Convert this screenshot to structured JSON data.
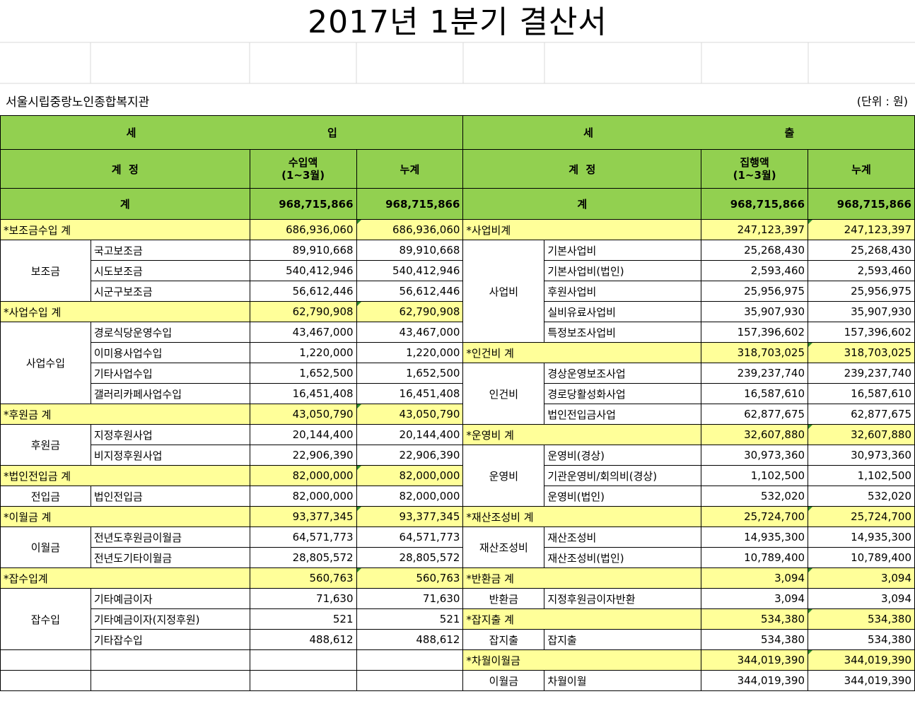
{
  "document": {
    "title": "2017년 1분기 결산서",
    "organization": "서울시립중랑노인종합복지관",
    "unit": "(단위 : 원)"
  },
  "header": {
    "income_part1": "세",
    "income_part2": "입",
    "expense_part1": "세",
    "expense_part2": "출",
    "account": "계  정",
    "income_amount_line1": "수입액",
    "income_amount_line2": "(1~3월)",
    "expense_amount_line1": "집행액",
    "expense_amount_line2": "(1~3월)",
    "cumulative": "누계",
    "total_label": "계",
    "income_total": "968,715,866",
    "income_total_cum": "968,715,866",
    "expense_total": "968,715,866",
    "expense_total_cum": "968,715,866"
  },
  "rows": [
    {
      "l": {
        "sub": "*보조금수입 계",
        "a": "686,936,060",
        "b": "686,936,060"
      },
      "r": {
        "sub": "*사업비계",
        "a": "247,123,397",
        "b": "247,123,397"
      }
    },
    {
      "l": {
        "grp": "보조금",
        "item": "국고보조금",
        "a": "89,910,668",
        "b": "89,910,668"
      },
      "r": {
        "grp": "사업비",
        "item": "기본사업비",
        "a": "25,268,430",
        "b": "25,268,430"
      }
    },
    {
      "l": {
        "item": "시도보조금",
        "a": "540,412,946",
        "b": "540,412,946"
      },
      "r": {
        "item": "기본사업비(법인)",
        "a": "2,593,460",
        "b": "2,593,460"
      }
    },
    {
      "l": {
        "item": "시군구보조금",
        "a": "56,612,446",
        "b": "56,612,446"
      },
      "r": {
        "item": "후원사업비",
        "a": "25,956,975",
        "b": "25,956,975"
      }
    },
    {
      "l": {
        "sub": "*사업수입 계",
        "a": "62,790,908",
        "b": "62,790,908"
      },
      "r": {
        "item": "실비유료사업비",
        "a": "35,907,930",
        "b": "35,907,930"
      }
    },
    {
      "l": {
        "grp": "사업수입",
        "item": "경로식당운영수입",
        "a": "43,467,000",
        "b": "43,467,000"
      },
      "r": {
        "item": "특정보조사업비",
        "a": "157,396,602",
        "b": "157,396,602"
      }
    },
    {
      "l": {
        "item": "이미용사업수입",
        "a": "1,220,000",
        "b": "1,220,000"
      },
      "r": {
        "sub": "*인건비 계",
        "a": "318,703,025",
        "b": "318,703,025"
      }
    },
    {
      "l": {
        "item": "기타사업수입",
        "a": "1,652,500",
        "b": "1,652,500"
      },
      "r": {
        "grp": "인건비",
        "item": "경상운영보조사업",
        "a": "239,237,740",
        "b": "239,237,740"
      }
    },
    {
      "l": {
        "item": "갤러리카페사업수입",
        "a": "16,451,408",
        "b": "16,451,408"
      },
      "r": {
        "item": "경로당활성화사업",
        "a": "16,587,610",
        "b": "16,587,610"
      }
    },
    {
      "l": {
        "sub": "*후원금 계",
        "a": "43,050,790",
        "b": "43,050,790"
      },
      "r": {
        "item": "법인전입금사업",
        "a": "62,877,675",
        "b": "62,877,675"
      }
    },
    {
      "l": {
        "grp": "후원금",
        "item": "지정후원사업",
        "a": "20,144,400",
        "b": "20,144,400"
      },
      "r": {
        "sub": "*운영비 계",
        "a": "32,607,880",
        "b": "32,607,880"
      }
    },
    {
      "l": {
        "item": "비지정후원사업",
        "a": "22,906,390",
        "b": "22,906,390"
      },
      "r": {
        "grp": "운영비",
        "item": "운영비(경상)",
        "a": "30,973,360",
        "b": "30,973,360"
      }
    },
    {
      "l": {
        "sub": "*법인전입금 계",
        "a": "82,000,000",
        "b": "82,000,000"
      },
      "r": {
        "item": "기관운영비/회의비(경상)",
        "a": "1,102,500",
        "b": "1,102,500"
      }
    },
    {
      "l": {
        "grp": "전입금",
        "item": "법인전입금",
        "a": "82,000,000",
        "b": "82,000,000"
      },
      "r": {
        "item": "운영비(법인)",
        "a": "532,020",
        "b": "532,020"
      }
    },
    {
      "l": {
        "sub": "*이월금 계",
        "a": "93,377,345",
        "b": "93,377,345"
      },
      "r": {
        "sub": "*재산조성비 계",
        "a": "25,724,700",
        "b": "25,724,700"
      }
    },
    {
      "l": {
        "grp": "이월금",
        "item": "전년도후원금이월금",
        "a": "64,571,773",
        "b": "64,571,773"
      },
      "r": {
        "grp": "재산조성비",
        "item": "재산조성비",
        "a": "14,935,300",
        "b": "14,935,300"
      }
    },
    {
      "l": {
        "item": "전년도기타이월금",
        "a": "28,805,572",
        "b": "28,805,572"
      },
      "r": {
        "item": "재산조성비(법인)",
        "a": "10,789,400",
        "b": "10,789,400"
      }
    },
    {
      "l": {
        "sub": "*잡수입계",
        "a": "560,763",
        "b": "560,763"
      },
      "r": {
        "sub": "*반환금 계",
        "a": "3,094",
        "b": "3,094"
      }
    },
    {
      "l": {
        "grp": "잡수입",
        "item": "기타예금이자",
        "a": "71,630",
        "b": "71,630"
      },
      "r": {
        "grp": "반환금",
        "item": "지정후원금이자반환",
        "a": "3,094",
        "b": "3,094"
      }
    },
    {
      "l": {
        "item": "기타예금이자(지정후원)",
        "a": "521",
        "b": "521"
      },
      "r": {
        "sub": "*잡지출 계",
        "a": "534,380",
        "b": "534,380"
      }
    },
    {
      "l": {
        "item": "기타잡수입",
        "a": "488,612",
        "b": "488,612"
      },
      "r": {
        "grp": "잡지출",
        "item": "잡지출",
        "a": "534,380",
        "b": "534,380"
      }
    },
    {
      "l": {},
      "r": {
        "sub": "*차월이월금",
        "a": "344,019,390",
        "b": "344,019,390"
      }
    },
    {
      "l": {},
      "r": {
        "grp": "이월금",
        "item": "차월이월",
        "a": "344,019,390",
        "b": "344,019,390"
      }
    }
  ]
}
